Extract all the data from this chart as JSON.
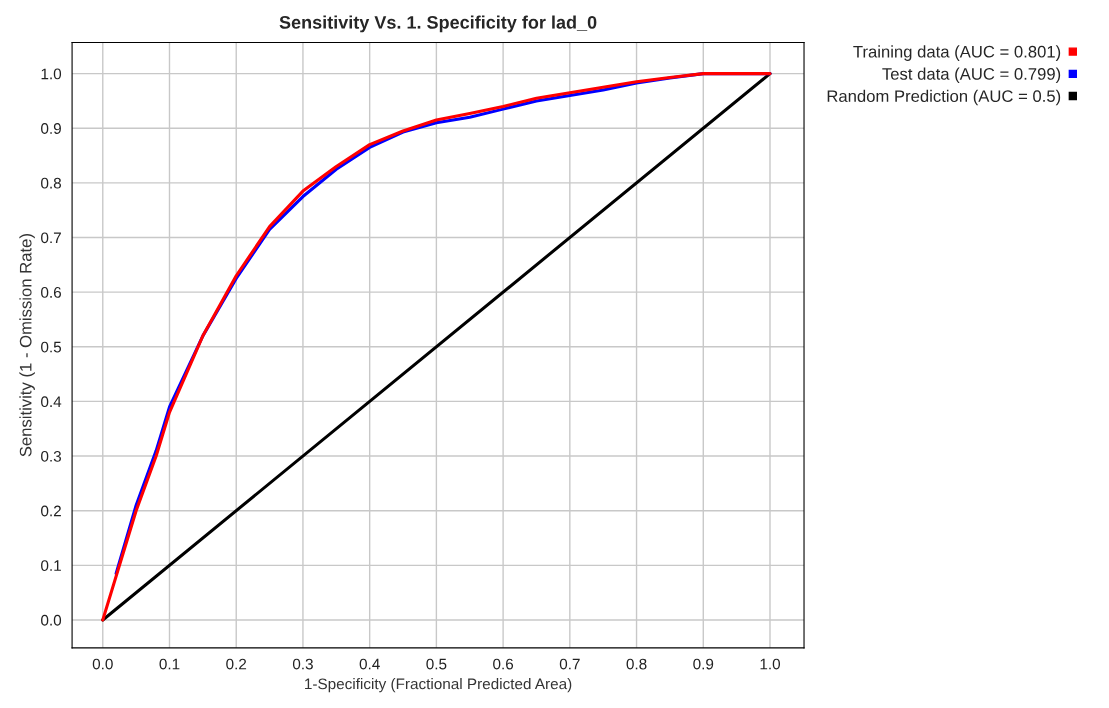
{
  "chart_data": {
    "type": "line",
    "title": "Sensitivity Vs. 1. Specificity for lad_0",
    "xlabel": "1-Specificity (Fractional Predicted Area)",
    "ylabel": "Sensitivity (1 - Omission Rate)",
    "xlim": [
      -0.046,
      1.051
    ],
    "ylim": [
      -0.051,
      1.057
    ],
    "xticks": [
      {
        "value": 0,
        "label": "0.0"
      },
      {
        "value": 0.1,
        "label": "0.1"
      },
      {
        "value": 0.2,
        "label": "0.2"
      },
      {
        "value": 0.3,
        "label": "0.3"
      },
      {
        "value": 0.4,
        "label": "0.4"
      },
      {
        "value": 0.5,
        "label": "0.5"
      },
      {
        "value": 0.6,
        "label": "0.6"
      },
      {
        "value": 0.7,
        "label": "0.7"
      },
      {
        "value": 0.8,
        "label": "0.8"
      },
      {
        "value": 0.9,
        "label": "0.9"
      },
      {
        "value": 1,
        "label": "1.0"
      }
    ],
    "yticks": [
      {
        "value": 0,
        "label": "0.0"
      },
      {
        "value": 0.1,
        "label": "0.1"
      },
      {
        "value": 0.2,
        "label": "0.2"
      },
      {
        "value": 0.3,
        "label": "0.3"
      },
      {
        "value": 0.4,
        "label": "0.4"
      },
      {
        "value": 0.5,
        "label": "0.5"
      },
      {
        "value": 0.6,
        "label": "0.6"
      },
      {
        "value": 0.7,
        "label": "0.7"
      },
      {
        "value": 0.8,
        "label": "0.8"
      },
      {
        "value": 0.9,
        "label": "0.9"
      },
      {
        "value": 1,
        "label": "1.0"
      }
    ],
    "grid": true,
    "legend": "top right",
    "line_style": "solid",
    "series": [
      {
        "name": "Training data (AUC = 0.801)",
        "color": "#ff0000",
        "x": [
          0,
          0.02,
          0.05,
          0.08,
          0.1,
          0.125,
          0.15,
          0.2,
          0.25,
          0.3,
          0.35,
          0.4,
          0.45,
          0.5,
          0.55,
          0.6,
          0.65,
          0.7,
          0.75,
          0.8,
          0.85,
          0.9,
          1
        ],
        "values": [
          0,
          0.08,
          0.2,
          0.3,
          0.38,
          0.45,
          0.52,
          0.63,
          0.72,
          0.785,
          0.83,
          0.87,
          0.895,
          0.915,
          0.927,
          0.94,
          0.955,
          0.965,
          0.975,
          0.985,
          0.993,
          1,
          1
        ]
      },
      {
        "name": "Test data (AUC = 0.799)",
        "color": "#0000ff",
        "x": [
          0.02,
          0.05,
          0.08,
          0.1,
          0.125,
          0.15,
          0.2,
          0.25,
          0.3,
          0.35,
          0.4,
          0.45,
          0.5,
          0.55,
          0.6,
          0.65,
          0.7,
          0.75,
          0.8,
          0.85,
          0.9,
          1
        ],
        "values": [
          0.085,
          0.21,
          0.31,
          0.39,
          0.455,
          0.52,
          0.625,
          0.715,
          0.775,
          0.825,
          0.865,
          0.893,
          0.91,
          0.92,
          0.935,
          0.95,
          0.96,
          0.97,
          0.983,
          0.992,
          1,
          1
        ]
      },
      {
        "name": "Random Prediction (AUC = 0.5)",
        "color": "#000000",
        "x": [
          0,
          1
        ],
        "values": [
          0,
          1
        ]
      }
    ]
  }
}
